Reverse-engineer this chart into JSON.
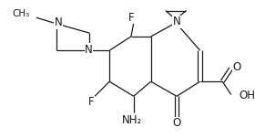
{
  "bg_color": "#ffffff",
  "line_color": "#1a1a1a",
  "font_size": 7.5,
  "figsize": [
    2.8,
    1.51
  ],
  "dpi": 100,
  "xlim": [
    0,
    280
  ],
  "ylim": [
    0,
    151
  ]
}
